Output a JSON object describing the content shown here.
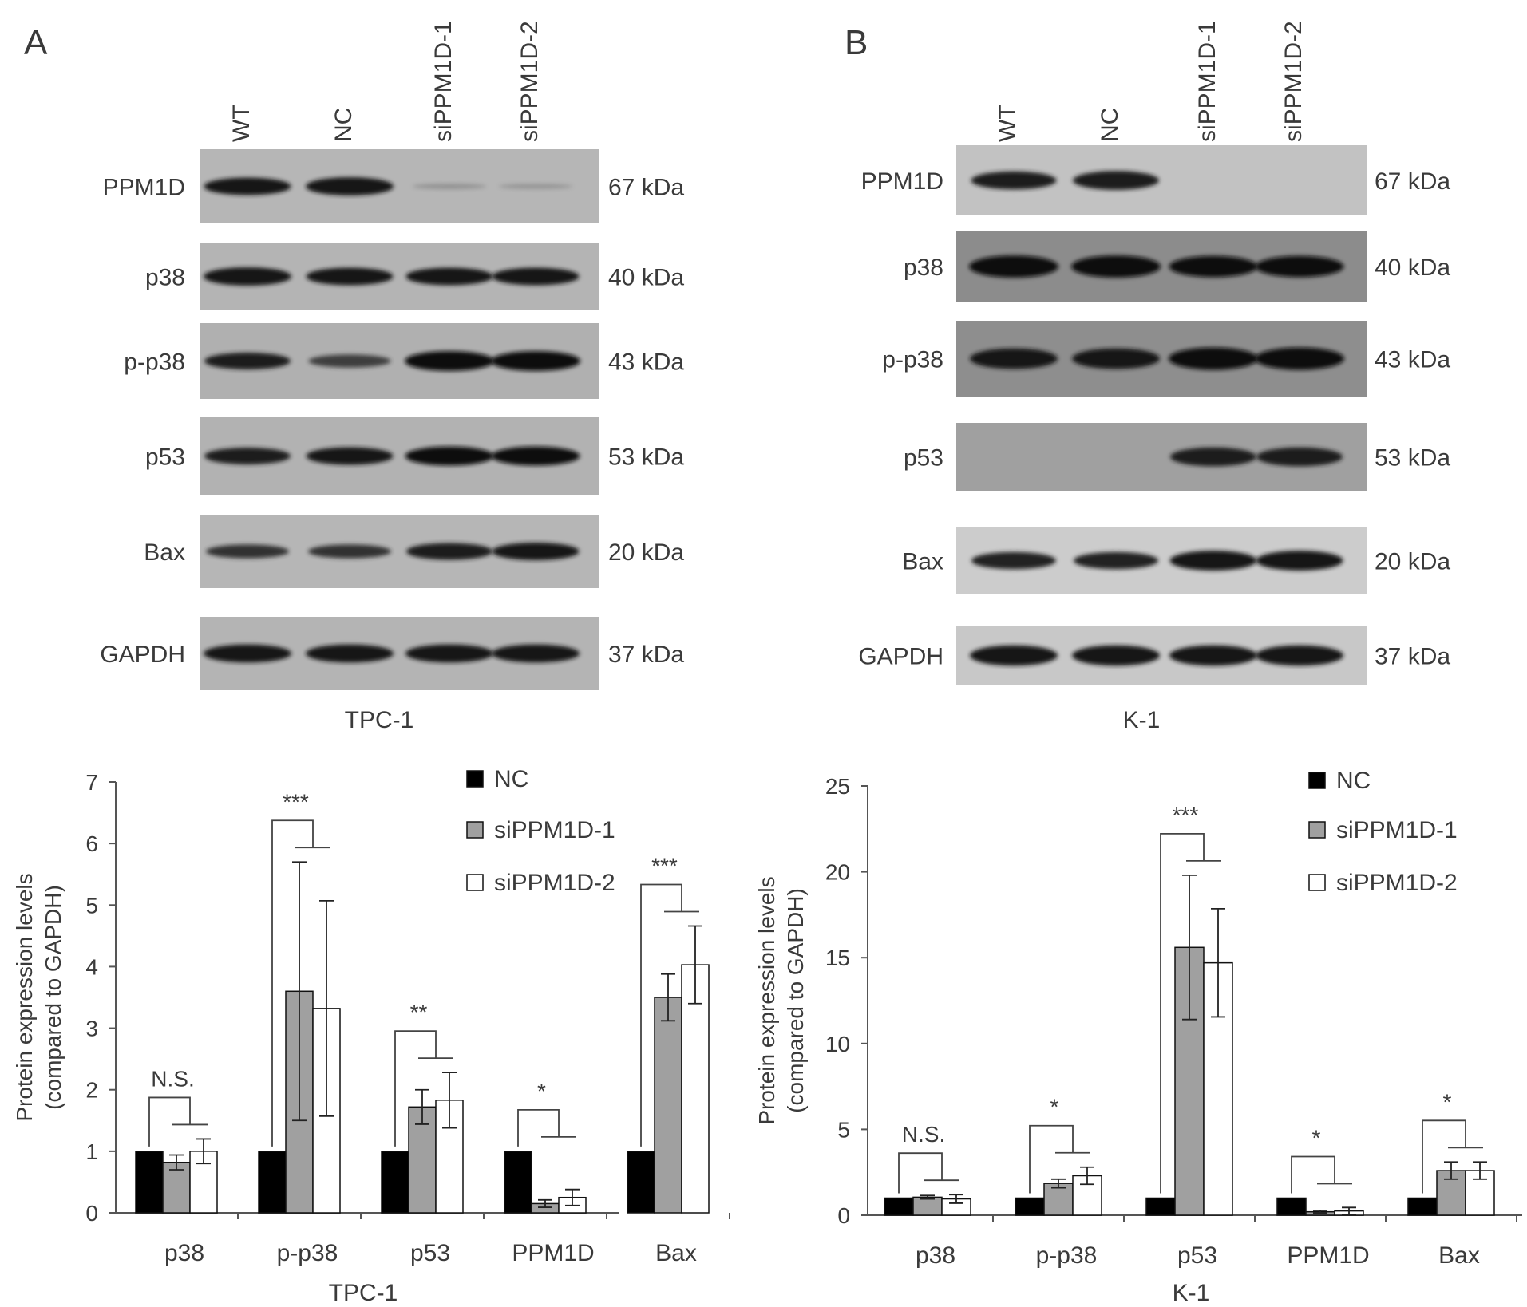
{
  "panels": [
    {
      "letter": "A",
      "lanes": [
        "WT",
        "NC",
        "siPPM1D-1",
        "siPPM1D-2"
      ],
      "cell_line": "TPC-1",
      "blots": [
        {
          "protein": "PPM1D",
          "kda": "67 kDa",
          "bg": "#b6b6b6",
          "bands": [
            0.85,
            0.9,
            0.04,
            0.02
          ]
        },
        {
          "protein": "p38",
          "kda": "40 kDa",
          "bg": "#b4b4b4",
          "bands": [
            0.9,
            0.85,
            0.85,
            0.85
          ]
        },
        {
          "protein": "p-p38",
          "kda": "43 kDa",
          "bg": "#b0b0b0",
          "bands": [
            0.8,
            0.55,
            1.0,
            1.0
          ]
        },
        {
          "protein": "p53",
          "kda": "53 kDa",
          "bg": "#b2b2b2",
          "bands": [
            0.8,
            0.85,
            0.95,
            0.95
          ]
        },
        {
          "protein": "Bax",
          "kda": "20 kDa",
          "bg": "#b6b6b6",
          "bands": [
            0.6,
            0.6,
            0.8,
            0.85
          ]
        },
        {
          "protein": "GAPDH",
          "kda": "37 kDa",
          "bg": "#b4b4b4",
          "bands": [
            0.9,
            0.9,
            0.9,
            0.9
          ]
        }
      ]
    },
    {
      "letter": "B",
      "lanes": [
        "WT",
        "NC",
        "siPPM1D-1",
        "siPPM1D-2"
      ],
      "cell_line": "K-1",
      "blots": [
        {
          "protein": "PPM1D",
          "kda": "67 kDa",
          "bg": "#c2c2c2",
          "bands": [
            0.75,
            0.8,
            0.0,
            0.0
          ]
        },
        {
          "protein": "p38",
          "kda": "40 kDa",
          "bg": "#8c8c8c",
          "bands": [
            1.0,
            1.0,
            0.95,
            0.95
          ]
        },
        {
          "protein": "p-p38",
          "kda": "43 kDa",
          "bg": "#8e8e8e",
          "bands": [
            0.9,
            0.9,
            1.0,
            1.0
          ]
        },
        {
          "protein": "p53",
          "kda": "53 kDa",
          "bg": "#a0a0a0",
          "bands": [
            0.0,
            0.0,
            0.8,
            0.8
          ]
        },
        {
          "protein": "Bax",
          "kda": "20 kDa",
          "bg": "#cccccc",
          "bands": [
            0.7,
            0.7,
            0.85,
            0.85
          ]
        },
        {
          "protein": "GAPDH",
          "kda": "37 kDa",
          "bg": "#c8c8c8",
          "bands": [
            0.9,
            0.9,
            0.9,
            0.9
          ]
        }
      ]
    }
  ],
  "chart_data": [
    {
      "type": "bar",
      "xlabel": "TPC-1",
      "ylabel": "Protein expression levels (compared to GAPDH)",
      "ylim": [
        0,
        7
      ],
      "yticks": [
        0,
        1,
        2,
        3,
        4,
        5,
        6,
        7
      ],
      "categories": [
        "p38",
        "p-p38",
        "p53",
        "PPM1D",
        "Bax"
      ],
      "series": [
        {
          "name": "NC",
          "color": "#000000",
          "values": [
            1,
            1,
            1,
            1,
            1
          ],
          "errors": [
            0,
            0,
            0,
            0,
            0
          ]
        },
        {
          "name": "siPPM1D-1",
          "color": "#a0a0a0",
          "values": [
            0.82,
            3.6,
            1.72,
            0.15,
            3.5
          ],
          "errors": [
            0.12,
            2.1,
            0.28,
            0.06,
            0.38
          ]
        },
        {
          "name": "siPPM1D-2",
          "color": "#ffffff",
          "values": [
            1.0,
            3.32,
            1.83,
            0.25,
            4.03
          ],
          "errors": [
            0.2,
            1.75,
            0.45,
            0.13,
            0.63
          ]
        }
      ],
      "significance": [
        "N.S.",
        "***",
        "**",
        "*",
        "***"
      ],
      "legend_position": "top-right"
    },
    {
      "type": "bar",
      "xlabel": "K-1",
      "ylabel": "Protein expression levels (compared to GAPDH)",
      "ylim": [
        0,
        25
      ],
      "yticks": [
        0,
        5,
        10,
        15,
        20,
        25
      ],
      "categories": [
        "p38",
        "p-p38",
        "p53",
        "PPM1D",
        "Bax"
      ],
      "series": [
        {
          "name": "NC",
          "color": "#000000",
          "values": [
            1,
            1,
            1,
            1,
            1
          ],
          "errors": [
            0,
            0,
            0,
            0,
            0
          ]
        },
        {
          "name": "siPPM1D-1",
          "color": "#a0a0a0",
          "values": [
            1.05,
            1.85,
            15.6,
            0.2,
            2.6
          ],
          "errors": [
            0.1,
            0.25,
            4.2,
            0.08,
            0.5
          ]
        },
        {
          "name": "siPPM1D-2",
          "color": "#ffffff",
          "values": [
            0.95,
            2.3,
            14.7,
            0.25,
            2.6
          ],
          "errors": [
            0.25,
            0.5,
            3.15,
            0.2,
            0.5
          ]
        }
      ],
      "significance": [
        "N.S.",
        "*",
        "***",
        "*",
        "*"
      ],
      "legend_position": "top-right"
    }
  ]
}
